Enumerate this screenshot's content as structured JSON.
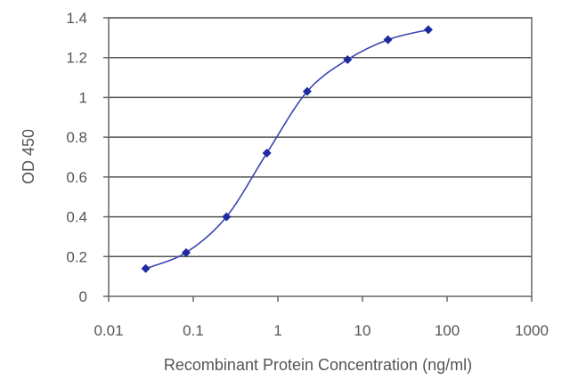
{
  "chart_data": {
    "type": "line",
    "title": "",
    "xlabel": "Recombinant Protein Concentration (ng/ml)",
    "ylabel": "OD 450",
    "x_scale": "log",
    "xlim": [
      0.01,
      1000
    ],
    "ylim": [
      0,
      1.4
    ],
    "x_ticks": [
      "0.01",
      "0.1",
      "1",
      "10",
      "100",
      "1000"
    ],
    "y_ticks": [
      "0",
      "0.2",
      "0.4",
      "0.6",
      "0.8",
      "1",
      "1.2",
      "1.4"
    ],
    "grid": "horizontal",
    "series": [
      {
        "x": [
          0.0274,
          0.0823,
          0.247,
          0.741,
          2.22,
          6.67,
          20,
          60
        ],
        "y": [
          0.14,
          0.22,
          0.4,
          0.72,
          1.03,
          1.19,
          1.29,
          1.34
        ],
        "color": "#1f2aa0",
        "marker": "diamond"
      }
    ]
  }
}
